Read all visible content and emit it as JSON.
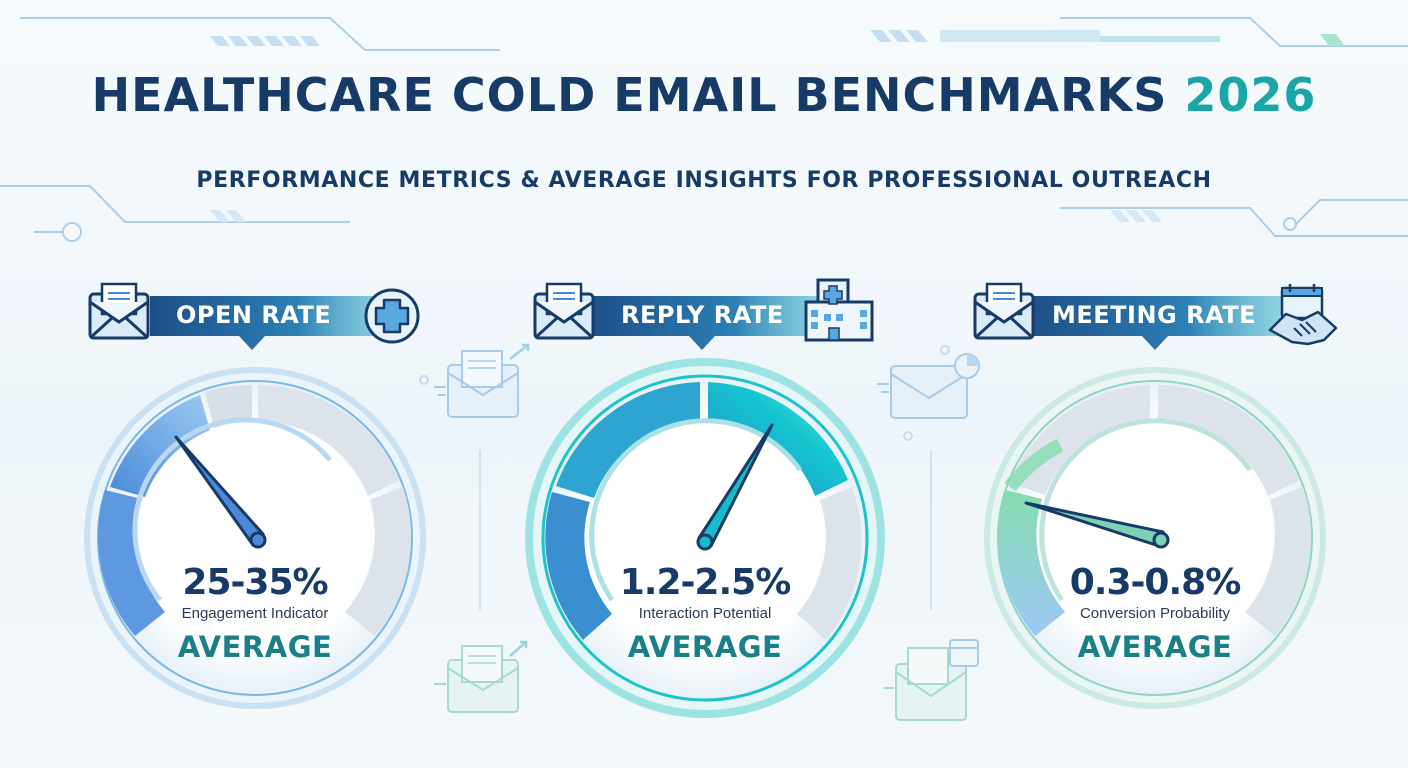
{
  "header": {
    "title_main": "HEALTHCARE COLD EMAIL BENCHMARKS",
    "title_year": "2026",
    "subtitle": "PERFORMANCE METRICS & AVERAGE INSIGHTS FOR PROFESSIONAL OUTREACH"
  },
  "colors": {
    "navy": "#173a66",
    "teal": "#1aa6a6",
    "average_teal": "#1b7f86",
    "blue_fill": "#4f93dd",
    "cyan_fill": "#18c9c9",
    "green_fill": "#7fd8b4"
  },
  "metrics": [
    {
      "label": "OPEN RATE",
      "value": "25-35%",
      "caption": "Engagement Indicator",
      "average": "AVERAGE",
      "left_icon": "envelope-icon",
      "right_icon": "medical-cross-icon"
    },
    {
      "label": "REPLY RATE",
      "value": "1.2-2.5%",
      "caption": "Interaction Potential",
      "average": "AVERAGE",
      "left_icon": "envelope-icon",
      "right_icon": "hospital-icon"
    },
    {
      "label": "MEETING RATE",
      "value": "0.3-0.8%",
      "caption": "Conversion Probability",
      "average": "AVERAGE",
      "left_icon": "envelope-icon",
      "right_icon": "handshake-calendar-icon"
    }
  ]
}
